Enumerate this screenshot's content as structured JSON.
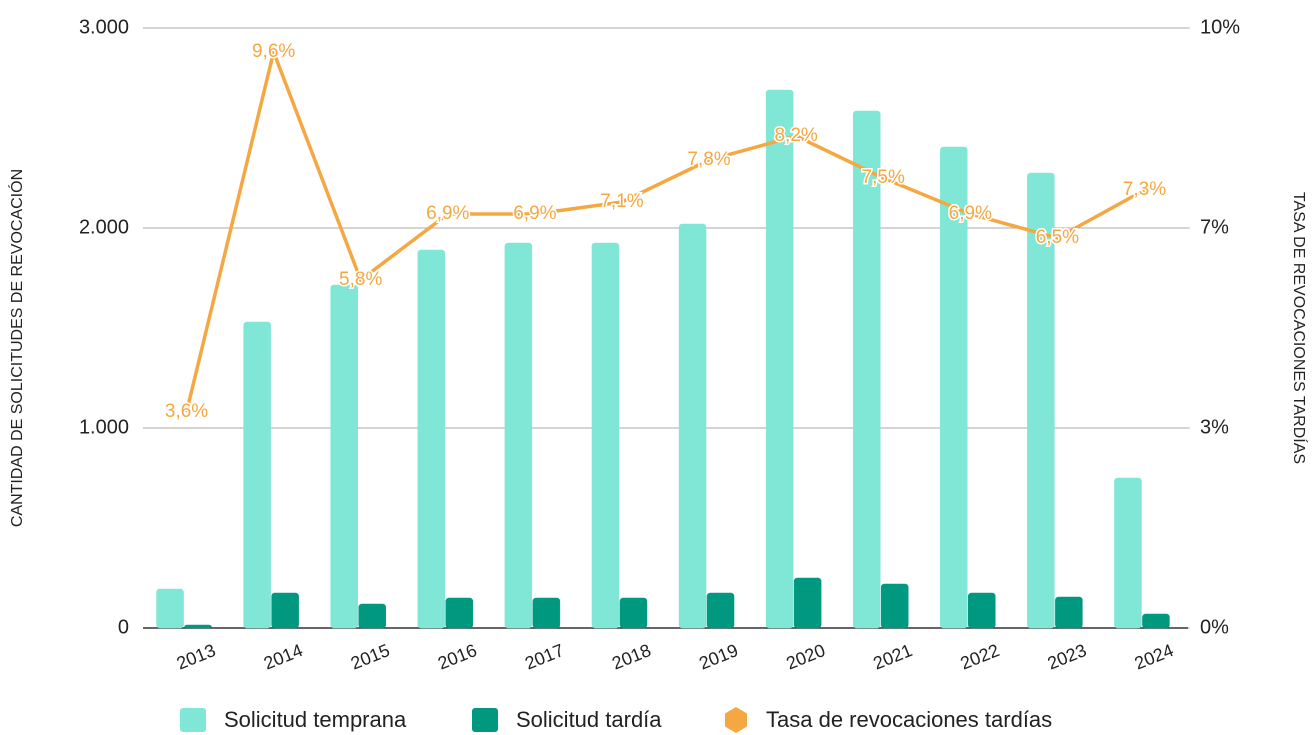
{
  "chart_data": {
    "type": "bar_line",
    "y_label": "CANTIDAD DE SOLICITUDES DE REVOCACIÓN",
    "y2_label": "TASA DE REVOCACIONES TARDÍAS",
    "categories": [
      "2013",
      "2014",
      "2015",
      "2016",
      "2017",
      "2018",
      "2019",
      "2020",
      "2021",
      "2022",
      "2023",
      "2024"
    ],
    "series": [
      {
        "name": "Solicitud temprana",
        "color": "#80e6d5",
        "values": [
          195,
          1530,
          1715,
          1890,
          1925,
          1925,
          2020,
          2690,
          2585,
          2405,
          2275,
          750
        ]
      },
      {
        "name": "Solicitud tardía",
        "color": "#00997f",
        "values": [
          15,
          175,
          120,
          150,
          150,
          150,
          175,
          250,
          220,
          175,
          155,
          70
        ]
      },
      {
        "name": "Tasa de revocaciones tardías",
        "color": "#f5a742",
        "axis": "y2",
        "type": "line",
        "values": [
          3.6,
          9.6,
          5.8,
          6.9,
          6.9,
          7.1,
          7.8,
          8.2,
          7.5,
          6.9,
          6.5,
          7.3
        ],
        "value_labels": [
          "3,6%",
          "9,6%",
          "5,8%",
          "6,9%",
          "6,9%",
          "7,1%",
          "7,8%",
          "8,2%",
          "7,5%",
          "6,9%",
          "6,5%",
          "7,3%"
        ]
      }
    ],
    "ylim": [
      0,
      3000
    ],
    "yticks": [
      0,
      {
        "value": 1000,
        "label": "1.000"
      },
      {
        "value": 2000,
        "label": "2.000"
      },
      {
        "value": 3000,
        "label": "3.000"
      }
    ],
    "y2lim": [
      0,
      10
    ],
    "y2ticks": [
      {
        "value": 0,
        "label": "0%"
      },
      {
        "value": 3.333,
        "label": "3%"
      },
      {
        "value": 6.667,
        "label": "7%"
      },
      {
        "value": 10,
        "label": "10%"
      }
    ],
    "grid": true
  }
}
